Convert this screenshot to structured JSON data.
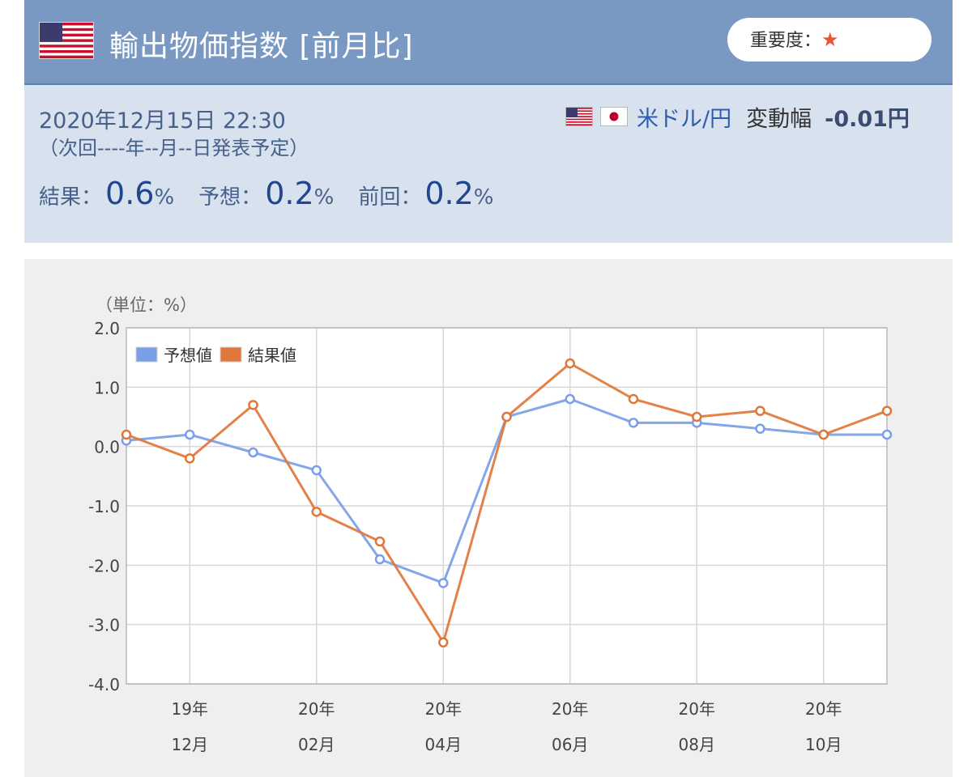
{
  "header": {
    "flag": "us-flag-icon",
    "title": "輸出物価指数 [前月比]",
    "importance_label": "重要度：",
    "importance_star": "★"
  },
  "info": {
    "datetime": "2020年12月15日 22:30",
    "next_release": "（次回----年--月--日発表予定）",
    "pair": "米ドル/円",
    "change_label": "変動幅",
    "change_value": "-0.01円",
    "result_label": "結果：",
    "result_value": "0.6",
    "forecast_label": "予想：",
    "forecast_value": "0.2",
    "previous_label": "前回：",
    "previous_value": "0.2",
    "unit": "%"
  },
  "colors": {
    "header_bg": "#7a99c2",
    "info_bg": "#d8e2ee",
    "forecast_line": "#7a9fe8",
    "result_line": "#e0773a"
  },
  "chart_data": {
    "type": "line",
    "unit_label": "（単位：%）",
    "ylim": [
      -4.0,
      2.0
    ],
    "yticks": [
      "2.0",
      "1.0",
      "0.0",
      "-1.0",
      "-2.0",
      "-3.0",
      "-4.0"
    ],
    "x": [
      "2019-11",
      "2019-12",
      "2020-01",
      "2020-02",
      "2020-03",
      "2020-04",
      "2020-05",
      "2020-06",
      "2020-07",
      "2020-08",
      "2020-09",
      "2020-10",
      "2020-11"
    ],
    "xtick_labels": [
      {
        "top": "19年",
        "bottom": "12月"
      },
      {
        "top": "20年",
        "bottom": "02月"
      },
      {
        "top": "20年",
        "bottom": "04月"
      },
      {
        "top": "20年",
        "bottom": "06月"
      },
      {
        "top": "20年",
        "bottom": "08月"
      },
      {
        "top": "20年",
        "bottom": "10月"
      }
    ],
    "legend_position": "top-left",
    "grid": true,
    "series": [
      {
        "name": "予想値",
        "values": [
          0.1,
          0.2,
          -0.1,
          -0.4,
          -1.9,
          -2.3,
          0.5,
          0.8,
          0.4,
          0.4,
          0.3,
          0.2,
          0.2
        ]
      },
      {
        "name": "結果値",
        "values": [
          0.2,
          -0.2,
          0.7,
          -1.1,
          -1.6,
          -3.3,
          0.5,
          1.4,
          0.8,
          0.5,
          0.6,
          0.2,
          0.6
        ]
      }
    ]
  }
}
